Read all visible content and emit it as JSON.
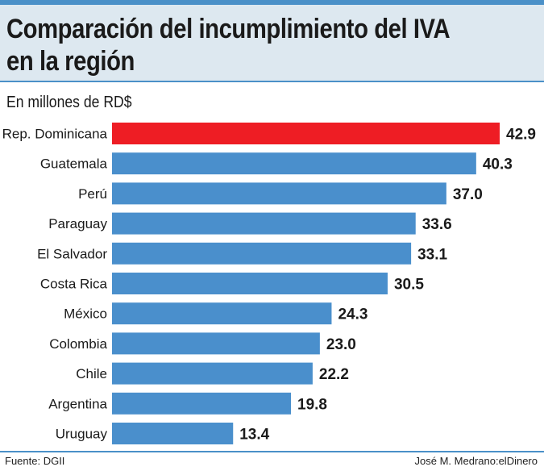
{
  "header": {
    "title": "Comparación del incumplimiento del IVA en la región",
    "subtitle": "En millones de RD$"
  },
  "footer": {
    "source": "Fuente: DGII",
    "credit": "José M. Medrano:elDinero"
  },
  "colors": {
    "highlight": "#ee1d24",
    "bar": "#4a8fcc",
    "panel": "#dde8f0",
    "rule": "#4a90c8"
  },
  "chart_data": {
    "type": "bar",
    "orientation": "horizontal",
    "categories": [
      "Rep. Dominicana",
      "Guatemala",
      "Perú",
      "Paraguay",
      "El Salvador",
      "Costa Rica",
      "México",
      "Colombia",
      "Chile",
      "Argentina",
      "Uruguay"
    ],
    "values": [
      42.9,
      40.3,
      37.0,
      33.6,
      33.1,
      30.5,
      24.3,
      23.0,
      22.2,
      19.8,
      13.4
    ],
    "value_labels": [
      "42.9",
      "40.3",
      "37.0",
      "33.6",
      "33.1",
      "30.5",
      "24.3",
      "23.0",
      "22.2",
      "19.8",
      "13.4"
    ],
    "highlight_index": 0,
    "title": "Comparación del incumplimiento del IVA en la región",
    "subtitle": "En millones de RD$",
    "grid": false,
    "legend": "none"
  }
}
